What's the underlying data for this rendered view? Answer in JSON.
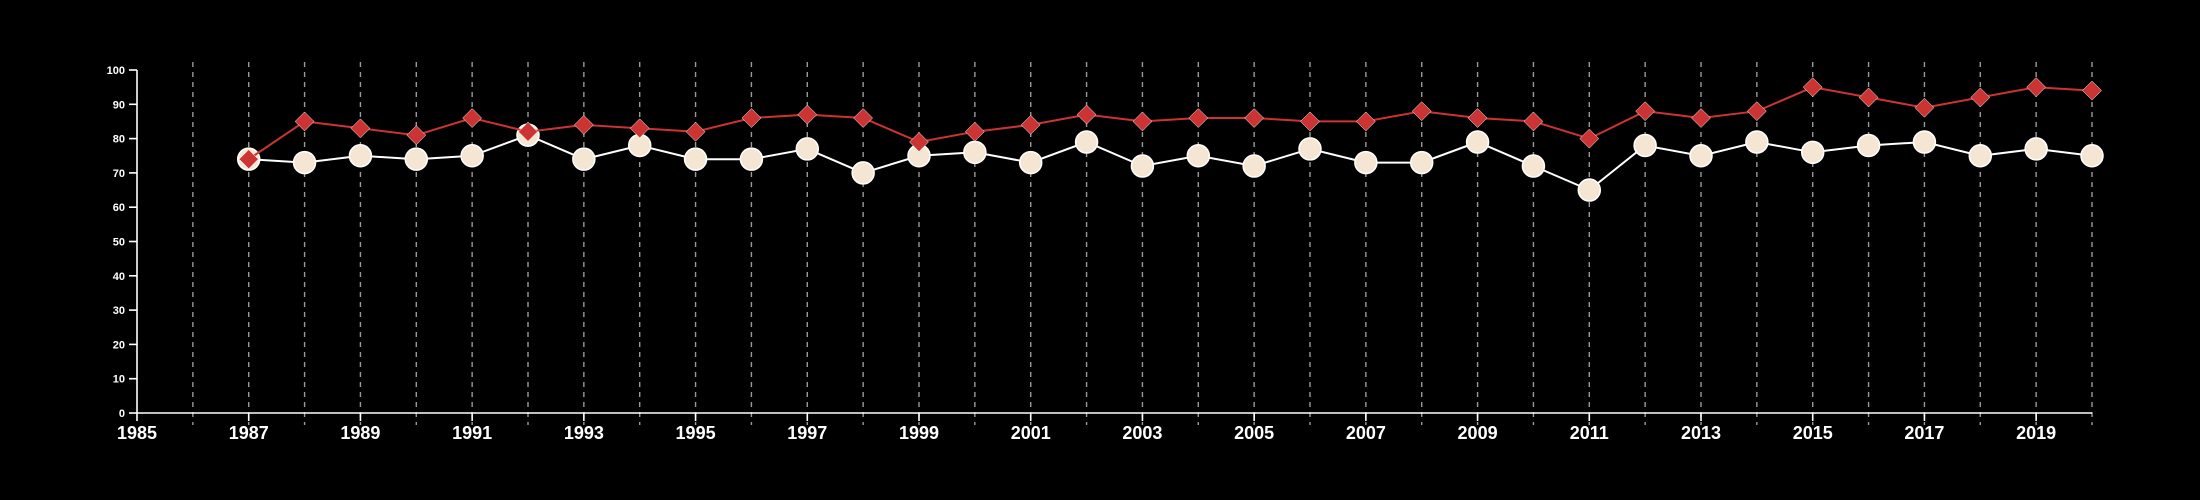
{
  "chart_data": {
    "type": "line",
    "title": "",
    "xlabel": "",
    "ylabel": "",
    "xlim": [
      1985,
      2020
    ],
    "ylim": [
      0,
      100
    ],
    "y_ticks": [
      "0",
      "10",
      "20",
      "30",
      "40",
      "50",
      "60",
      "70",
      "80",
      "90",
      "100"
    ],
    "x_ticks": [
      "1985",
      "1987",
      "1989",
      "1991",
      "1993",
      "1995",
      "1997",
      "1999",
      "2001",
      "2003",
      "2005",
      "2007",
      "2009",
      "2011",
      "2013",
      "2015",
      "2017",
      "2019"
    ],
    "grid": "vertical dashed at every year",
    "legend": "none",
    "x": [
      1987,
      1988,
      1989,
      1990,
      1991,
      1992,
      1993,
      1994,
      1995,
      1996,
      1997,
      1998,
      1999,
      2000,
      2001,
      2002,
      2003,
      2004,
      2005,
      2006,
      2007,
      2008,
      2009,
      2010,
      2011,
      2012,
      2013,
      2014,
      2015,
      2016,
      2017,
      2018,
      2019,
      2020
    ],
    "series": [
      {
        "marker": "diamond",
        "color": "#cc3333",
        "values": [
          74,
          85,
          83,
          81,
          86,
          82,
          84,
          83,
          82,
          86,
          87,
          86,
          79,
          82,
          84,
          87,
          85,
          86,
          86,
          85,
          85,
          88,
          86,
          85,
          80,
          88,
          86,
          88,
          95,
          92,
          89,
          92,
          95,
          94
        ]
      },
      {
        "marker": "circle",
        "color": "#f5e6d3",
        "values": [
          74,
          73,
          75,
          74,
          75,
          81,
          74,
          78,
          74,
          74,
          77,
          70,
          75,
          76,
          73,
          79,
          72,
          75,
          72,
          77,
          73,
          73,
          79,
          72,
          65,
          78,
          75,
          79,
          76,
          78,
          79,
          75,
          77,
          75
        ]
      }
    ]
  }
}
